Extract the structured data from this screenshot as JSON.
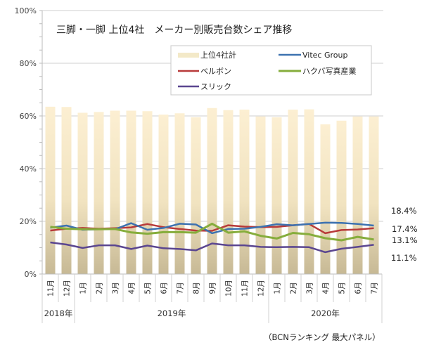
{
  "chart_data": {
    "type": "bar+line",
    "title": "三脚・一脚 上位4社　メーカー別販売台数シェア推移",
    "source": "（BCNランキング 最大パネル）",
    "ylim": [
      0,
      100
    ],
    "yticks": [
      "0%",
      "20%",
      "40%",
      "60%",
      "80%",
      "100%"
    ],
    "ytick_values": [
      0,
      20,
      40,
      60,
      80,
      100
    ],
    "grid": true,
    "legend_position": "top-right",
    "categories": [
      "11月",
      "12月",
      "1月",
      "2月",
      "3月",
      "4月",
      "5月",
      "6月",
      "7月",
      "8月",
      "9月",
      "10月",
      "11月",
      "12月",
      "1月",
      "2月",
      "3月",
      "4月",
      "5月",
      "6月",
      "7月"
    ],
    "years": [
      {
        "label": "2018年",
        "span": 2
      },
      {
        "label": "2019年",
        "span": 12
      },
      {
        "label": "2020年",
        "span": 7
      }
    ],
    "series": [
      {
        "name": "上位4社計",
        "kind": "bar",
        "color": "#f7e6bd",
        "values": [
          63.5,
          63.4,
          61.2,
          61.5,
          62.0,
          62.0,
          61.8,
          60.5,
          61.0,
          59.5,
          63.0,
          62.2,
          62.4,
          59.8,
          59.5,
          62.4,
          62.5,
          56.8,
          58.2,
          59.8,
          59.8
        ]
      },
      {
        "name": "Vitec Group",
        "kind": "line",
        "color": "#3d72b0",
        "values": [
          17.6,
          18.4,
          16.8,
          17.0,
          17.0,
          19.3,
          16.8,
          17.5,
          19.1,
          18.8,
          15.5,
          17.1,
          17.2,
          17.9,
          18.9,
          18.5,
          19.0,
          19.5,
          19.4,
          19.0,
          18.4
        ]
      },
      {
        "name": "ベルボン",
        "kind": "line",
        "color": "#b83a3a",
        "values": [
          16.5,
          17.2,
          17.5,
          17.2,
          17.4,
          17.7,
          19.0,
          17.8,
          17.1,
          16.5,
          16.4,
          18.5,
          18.0,
          17.8,
          17.9,
          18.5,
          19.0,
          15.5,
          16.7,
          16.9,
          17.4
        ]
      },
      {
        "name": "ハクバ写真産業",
        "kind": "line",
        "color": "#86ad3c",
        "values": [
          17.9,
          17.2,
          17.0,
          17.0,
          17.1,
          15.8,
          15.3,
          15.9,
          15.9,
          15.7,
          19.1,
          15.7,
          16.2,
          14.5,
          13.5,
          15.6,
          15.1,
          13.6,
          12.8,
          14.1,
          13.1
        ]
      },
      {
        "name": "スリック",
        "kind": "line",
        "color": "#5b4690",
        "values": [
          12.0,
          11.2,
          9.9,
          10.9,
          10.9,
          9.5,
          10.8,
          9.8,
          9.5,
          9.0,
          11.6,
          10.9,
          10.9,
          10.3,
          10.2,
          10.3,
          10.2,
          8.3,
          9.6,
          10.3,
          11.1
        ]
      }
    ],
    "end_labels": [
      "18.4%",
      "17.4%",
      "13.1%",
      "11.1%"
    ]
  }
}
